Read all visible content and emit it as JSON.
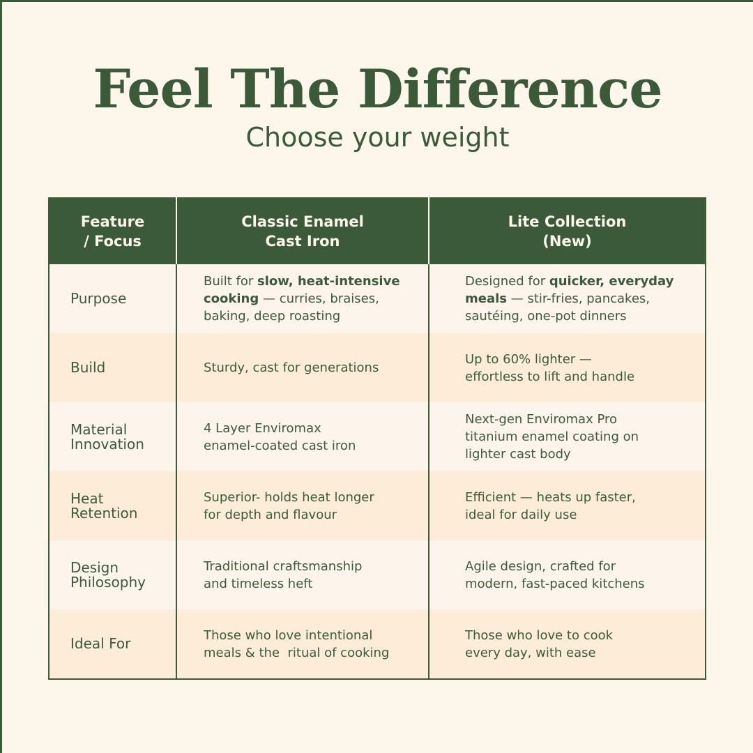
{
  "heading": {
    "title": "Feel The Difference",
    "subtitle": "Choose your weight"
  },
  "table": {
    "headers": {
      "feature": [
        "Feature",
        "/ Focus"
      ],
      "classic": [
        "Classic Enamel",
        "Cast Iron"
      ],
      "lite": [
        "Lite Collection",
        "(New)"
      ]
    },
    "rows": [
      {
        "feature": [
          "Purpose"
        ],
        "classic": {
          "pre": "Built for ",
          "bold": "slow, heat-intensive cooking",
          "post": " — curries, braises, baking, deep roasting"
        },
        "lite": {
          "pre": "Designed for ",
          "bold": "quicker, everyday meals",
          "post": " — stir-fries, pancakes, sautéing, one-pot dinners"
        }
      },
      {
        "feature": [
          "Build"
        ],
        "classic": [
          "Sturdy, cast for generations"
        ],
        "lite": [
          "Up to 60% lighter —",
          "effortless to lift and handle"
        ]
      },
      {
        "feature": [
          "Material",
          "Innovation"
        ],
        "classic": [
          "4 Layer Enviromax",
          "enamel-coated cast iron"
        ],
        "lite": [
          "Next-gen Enviromax Pro",
          "titanium enamel coating on",
          "lighter cast body"
        ]
      },
      {
        "feature": [
          "Heat",
          "Retention"
        ],
        "classic": [
          "Superior- holds heat longer",
          "for depth and flavour"
        ],
        "lite": [
          "Efficient — heats up faster,",
          "ideal for daily use"
        ]
      },
      {
        "feature": [
          "Design",
          "Philosophy"
        ],
        "classic": [
          "Traditional craftsmanship",
          "and timeless heft"
        ],
        "lite": [
          "Agile design, crafted for",
          "modern, fast-paced kitchens"
        ]
      },
      {
        "feature": [
          "Ideal For"
        ],
        "classic": [
          "Those who love intentional",
          "meals & the  ritual of cooking"
        ],
        "lite": [
          "Those who love to cook",
          "every day, with ease"
        ]
      }
    ]
  },
  "colors": {
    "background": "#fdf6ea",
    "brand_green": "#3a5a3a",
    "row_light": "#fdf4ec",
    "row_dark": "#fdedd8"
  }
}
